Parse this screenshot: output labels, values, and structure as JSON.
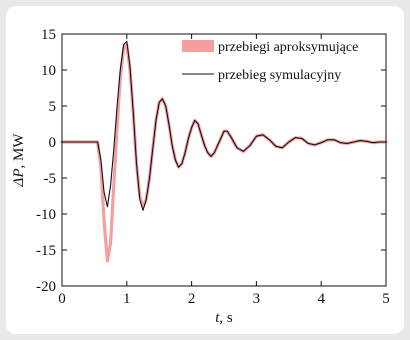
{
  "chart_data": {
    "type": "line",
    "xlabel_symbol": "t",
    "xlabel_unit": ", s",
    "ylabel_symbol": "ΔP",
    "ylabel_unit": ", MW",
    "xlim": [
      0,
      5
    ],
    "ylim": [
      -20,
      15
    ],
    "xticks": [
      0,
      1,
      2,
      3,
      4,
      5
    ],
    "yticks": [
      15,
      10,
      5,
      0,
      -5,
      -10,
      -15,
      -20
    ],
    "legend_position": "top-right",
    "series": [
      {
        "name": "przebiegi aproksymujące",
        "color": "#f4a0a0",
        "style": "band",
        "x": [
          0,
          0.55,
          0.6,
          0.65,
          0.7,
          0.75,
          0.8,
          0.85,
          0.9,
          0.95,
          1.0,
          1.05,
          1.1,
          1.15,
          1.2,
          1.25,
          1.3,
          1.35,
          1.4,
          1.45,
          1.5,
          1.55,
          1.6,
          1.65,
          1.7,
          1.75,
          1.8,
          1.85,
          1.9,
          1.95,
          2.0,
          2.05,
          2.1,
          2.15,
          2.2,
          2.25,
          2.3,
          2.35,
          2.4,
          2.45,
          2.5,
          2.55,
          2.6,
          2.7,
          2.8,
          2.9,
          3.0,
          3.1,
          3.2,
          3.3,
          3.4,
          3.5,
          3.6,
          3.7,
          3.8,
          3.9,
          4.0,
          4.1,
          4.2,
          4.3,
          4.4,
          4.5,
          4.6,
          4.7,
          4.8,
          4.9,
          5.0
        ],
        "y": [
          0,
          0,
          -3.5,
          -11,
          -16.5,
          -14,
          -6,
          2,
          9,
          13,
          13.5,
          10,
          4,
          -3,
          -7.5,
          -9,
          -8,
          -5,
          -1,
          3,
          5.5,
          6,
          5,
          2.5,
          -0.5,
          -2.5,
          -3.5,
          -3,
          -1.5,
          0.5,
          2,
          3,
          2.5,
          1,
          -0.5,
          -1.5,
          -2,
          -1.5,
          -0.5,
          0.5,
          1.5,
          1.5,
          0.8,
          -0.8,
          -1.3,
          -0.5,
          0.8,
          1.0,
          0.3,
          -0.6,
          -0.8,
          0,
          0.6,
          0.5,
          -0.2,
          -0.4,
          -0.1,
          0.3,
          0.3,
          -0.1,
          -0.2,
          0,
          0.2,
          0.1,
          -0.1,
          0,
          0
        ]
      },
      {
        "name": "przebieg symulacyjny",
        "color": "#111111",
        "style": "line",
        "x": [
          0,
          0.55,
          0.6,
          0.65,
          0.7,
          0.75,
          0.8,
          0.85,
          0.9,
          0.95,
          1.0,
          1.05,
          1.1,
          1.15,
          1.2,
          1.25,
          1.3,
          1.35,
          1.4,
          1.45,
          1.5,
          1.55,
          1.6,
          1.65,
          1.7,
          1.75,
          1.8,
          1.85,
          1.9,
          1.95,
          2.0,
          2.05,
          2.1,
          2.15,
          2.2,
          2.25,
          2.3,
          2.35,
          2.4,
          2.45,
          2.5,
          2.55,
          2.6,
          2.7,
          2.8,
          2.9,
          3.0,
          3.1,
          3.2,
          3.3,
          3.4,
          3.5,
          3.6,
          3.7,
          3.8,
          3.9,
          4.0,
          4.1,
          4.2,
          4.3,
          4.4,
          4.5,
          4.6,
          4.7,
          4.8,
          4.9,
          5.0
        ],
        "y": [
          0,
          0,
          -2.5,
          -7,
          -9,
          -6,
          -1,
          5,
          10,
          13.5,
          14,
          10.5,
          4,
          -3,
          -8,
          -9.5,
          -8,
          -5,
          -1,
          3,
          5.5,
          6,
          5,
          2.5,
          -0.5,
          -2.5,
          -3.5,
          -3,
          -1.5,
          0.5,
          2,
          3,
          2.5,
          1,
          -0.5,
          -1.5,
          -2,
          -1.5,
          -0.5,
          0.5,
          1.5,
          1.5,
          0.8,
          -0.8,
          -1.3,
          -0.5,
          0.8,
          1.0,
          0.3,
          -0.6,
          -0.8,
          0,
          0.6,
          0.5,
          -0.2,
          -0.4,
          -0.1,
          0.3,
          0.3,
          -0.1,
          -0.2,
          0,
          0.2,
          0.1,
          -0.1,
          0,
          0
        ]
      }
    ]
  }
}
